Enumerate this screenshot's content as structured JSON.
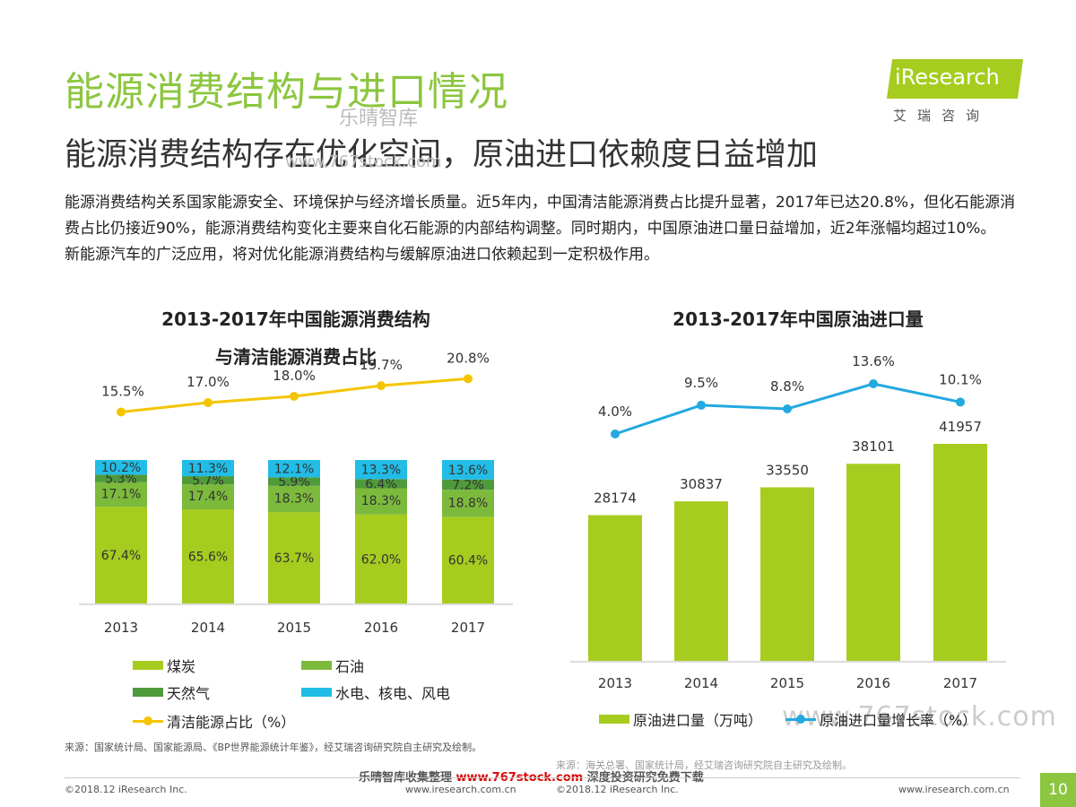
{
  "header": {
    "title": "能源消费结构与进口情况",
    "subtitle": "能源消费结构存在优化空间，原油进口依赖度日益增加",
    "logo_text": "iResearch",
    "logo_sub": "艾瑞咨询"
  },
  "watermarks": {
    "wm1": "乐晴智库",
    "wm2": "www.767stock.com",
    "wm3": "www.767stock.com"
  },
  "intro": {
    "p1": "能源消费结构关系国家能源安全、环境保护与经济增长质量。近5年内，中国清洁能源消费占比提升显著，2017年已达20.8%，但化石能源消费占比仍接近90%，能源消费结构变化主要来自化石能源的内部结构调整。同时期内，中国原油进口量日益增加，近2年涨幅均超过10%。",
    "p2": "新能源汽车的广泛应用，将对优化能源消费结构与缓解原油进口依赖起到一定积极作用。"
  },
  "chart_data": [
    {
      "type": "bar",
      "title": "2013-2017年中国能源消费结构",
      "title_line2": "与清洁能源消费占比",
      "categories": [
        "2013",
        "2014",
        "2015",
        "2016",
        "2017"
      ],
      "stacked": true,
      "series": [
        {
          "name": "煤炭",
          "values": [
            67.4,
            65.6,
            63.7,
            62.0,
            60.4
          ],
          "labels": [
            "67.4%",
            "65.6%",
            "63.7%",
            "62.0%",
            "60.4%"
          ],
          "color": "#a6cc1f"
        },
        {
          "name": "石油",
          "values": [
            17.1,
            17.4,
            18.3,
            18.3,
            18.8
          ],
          "labels": [
            "17.1%",
            "17.4%",
            "18.3%",
            "18.3%",
            "18.8%"
          ],
          "color": "#7cba3c"
        },
        {
          "name": "天然气",
          "values": [
            5.3,
            5.7,
            5.9,
            6.4,
            7.2
          ],
          "labels": [
            "5.3%",
            "5.7%",
            "5.9%",
            "6.4%",
            "7.2%"
          ],
          "color": "#4f9a3a"
        },
        {
          "name": "水电、核电、风电",
          "values": [
            10.2,
            11.3,
            12.1,
            13.3,
            13.6
          ],
          "labels": [
            "10.2%",
            "11.3%",
            "12.1%",
            "13.3%",
            "13.6%"
          ],
          "color": "#22bde6"
        }
      ],
      "line_series": {
        "name": "清洁能源占比（%）",
        "values": [
          15.5,
          17.0,
          18.0,
          19.7,
          20.8
        ],
        "labels": [
          "15.5%",
          "17.0%",
          "18.0%",
          "19.7%",
          "20.8%"
        ],
        "color": "#f5c400"
      },
      "ylim": [
        0,
        100
      ]
    },
    {
      "type": "bar",
      "title": "2013-2017年中国原油进口量",
      "categories": [
        "2013",
        "2014",
        "2015",
        "2016",
        "2017"
      ],
      "series": [
        {
          "name": "原油进口量（万吨）",
          "values": [
            28174,
            30837,
            33550,
            38101,
            41957
          ],
          "labels": [
            "28174",
            "30837",
            "33550",
            "38101",
            "41957"
          ],
          "color": "#a6cc1f"
        }
      ],
      "line_series": {
        "name": "原油进口量增长率（%）",
        "values": [
          4.0,
          9.5,
          8.8,
          13.6,
          10.1
        ],
        "labels": [
          "4.0%",
          "9.5%",
          "8.8%",
          "13.6%",
          "10.1%"
        ],
        "color": "#22a9e0"
      },
      "ylim": [
        0,
        50000
      ]
    }
  ],
  "sources": {
    "left": "来源：国家统计局、国家能源局、《BP世界能源统计年鉴》，经艾瑞咨询研究院自主研究及绘制。",
    "right": "来源：海关总署、国家统计局，经艾瑞咨询研究院自主研究及绘制。"
  },
  "footer": {
    "banner_a": "乐晴智库收集整理",
    "banner_url": "www.767stock.com",
    "banner_b": "深度投资研究免费下载",
    "copyright_left": "©2018.12 iResearch Inc.",
    "site_mid": "www.iresearch.com.cn",
    "copyright_mid": "©2018.12 iResearch Inc.",
    "site_right": "www.iresearch.com.cn",
    "page": "10"
  }
}
